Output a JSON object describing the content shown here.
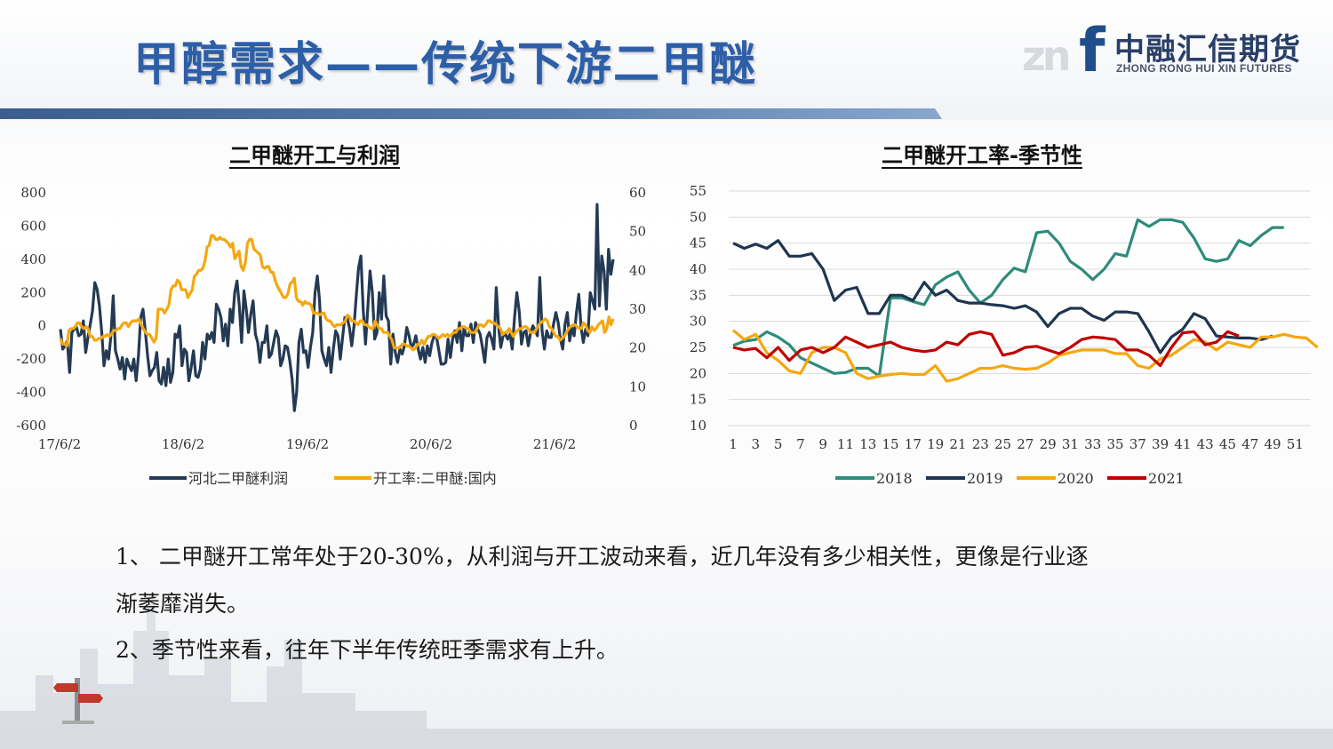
{
  "slide": {
    "title": "甲醇需求——传统下游二甲醚",
    "logo_cn": "中融汇信期货",
    "logo_en": "ZHONG RONG HUI XIN FUTURES",
    "logo_mark": "zn",
    "logo_f": "f"
  },
  "text": {
    "line1": "1、  二甲醚开工常年处于20-30%，从利润与开工波动来看，近几年没有多少相关性，更像是行业逐",
    "line2": "渐萎靡消失。",
    "line3": "2、季节性来看，往年下半年传统旺季需求有上升。"
  },
  "chart_data": [
    {
      "type": "line",
      "title": "二甲醚开工与利润",
      "x_tick_labels": [
        "17/6/2",
        "18/6/2",
        "19/6/2",
        "20/6/2",
        "21/6/2"
      ],
      "y_left": {
        "ticks": [
          "800",
          "600",
          "400",
          "200",
          "0",
          "-200",
          "-400",
          "-600"
        ],
        "range": [
          -600,
          800
        ]
      },
      "y_right": {
        "ticks": [
          "60",
          "50",
          "40",
          "30",
          "20",
          "10",
          "0"
        ],
        "range": [
          0,
          60
        ]
      },
      "legend_position": "bottom",
      "series": [
        {
          "name": "河北二甲醚利润",
          "axis": "left",
          "color": "#243a54",
          "values": [
            -20,
            -140,
            -120,
            -90,
            -280,
            -40,
            -20,
            -10,
            -60,
            -50,
            30,
            -160,
            -70,
            10,
            90,
            260,
            220,
            120,
            -40,
            -240,
            -150,
            -200,
            -60,
            180,
            -150,
            -200,
            -260,
            -190,
            -320,
            -200,
            -240,
            -270,
            -200,
            -330,
            -180,
            50,
            100,
            -30,
            -180,
            -300,
            -270,
            -250,
            -160,
            -330,
            -350,
            -250,
            -360,
            -200,
            -340,
            -280,
            -50,
            -70,
            0,
            -240,
            -140,
            -160,
            -330,
            -250,
            -150,
            -300,
            -310,
            -260,
            -100,
            -200,
            -50,
            -80,
            -40,
            -100,
            130,
            100,
            50,
            -90,
            10,
            -120,
            100,
            20,
            200,
            270,
            120,
            -100,
            210,
            100,
            -40,
            70,
            150,
            -50,
            -100,
            -220,
            -100,
            -100,
            0,
            -190,
            -170,
            -100,
            -30,
            -70,
            -240,
            -200,
            -120,
            -130,
            -210,
            -320,
            -510,
            -400,
            -100,
            -20,
            -160,
            -150,
            -250,
            -130,
            -40,
            200,
            300,
            150,
            -150,
            -200,
            -240,
            -130,
            -280,
            -140,
            -30,
            -60,
            -200,
            -70,
            50,
            50,
            -10,
            -120,
            0,
            180,
            350,
            420,
            100,
            -110,
            100,
            330,
            200,
            -80,
            -40,
            200,
            40,
            300,
            60,
            30,
            -230,
            -50,
            -160,
            -220,
            -140,
            -170,
            -120,
            -10,
            -60,
            -130,
            -110,
            -60,
            -140,
            -200,
            -130,
            -220,
            -120,
            -180,
            -100,
            -60,
            -70,
            -150,
            -230,
            -230,
            -220,
            -80,
            -190,
            -80,
            -30,
            -100,
            20,
            -150,
            -10,
            -60,
            -60,
            10,
            -100,
            20,
            -20,
            -50,
            -130,
            -220,
            -70,
            -40,
            -80,
            -140,
            230,
            0,
            -130,
            -60,
            -50,
            -80,
            -50,
            -140,
            50,
            200,
            90,
            -110,
            -40,
            -30,
            -120,
            -40,
            0,
            -30,
            -60,
            290,
            -30,
            -140,
            -30,
            -70,
            -70,
            10,
            80,
            20,
            -80,
            -140,
            10,
            80,
            -90,
            -10,
            -60,
            80,
            190,
            -10,
            -100,
            -20,
            -60,
            200,
            150,
            100,
            730,
            120,
            420,
            330,
            100,
            460,
            310,
            400
          ]
        },
        {
          "name": "开工率:二甲醚:国内",
          "axis": "right",
          "color": "#f5a70f",
          "values": [
            22.5,
            21,
            21,
            20.5,
            24.5,
            25,
            25,
            25.5,
            26.5,
            26.5,
            25.5,
            25,
            25.5,
            25,
            23,
            23,
            22,
            22,
            22.5,
            22.5,
            23,
            23,
            23.5,
            23,
            23.5,
            24.5,
            24.5,
            25,
            25,
            26,
            26.5,
            26.5,
            25.5,
            26.5,
            27,
            27,
            27,
            27.5,
            26,
            25,
            24,
            23.5,
            23.5,
            22.5,
            21.5,
            22.5,
            30,
            30,
            30,
            29,
            30,
            31,
            35,
            36,
            36,
            37.5,
            37,
            35,
            35,
            35,
            33,
            34,
            35,
            38.5,
            39,
            40,
            40,
            40.5,
            42.5,
            46,
            46.5,
            49,
            49,
            48,
            48,
            48.5,
            48,
            48,
            47.5,
            47,
            46,
            47,
            43,
            44,
            45,
            41,
            40,
            42,
            47,
            48,
            48,
            45.5,
            45,
            44.5,
            44,
            41,
            40.5,
            41,
            41,
            39.5,
            39.5,
            37.5,
            36,
            35,
            34,
            33,
            33,
            34,
            36.5,
            37,
            38,
            33,
            32,
            32,
            31,
            32,
            31.5,
            31.5,
            31,
            29,
            29,
            29,
            28.5,
            29,
            29,
            27.5,
            27,
            27,
            26,
            25.5,
            26,
            26,
            26,
            26.5,
            27,
            28.5,
            28,
            27,
            27,
            26.5,
            26,
            27,
            27,
            26,
            26,
            25.5,
            25,
            25,
            27,
            26,
            25,
            25,
            24,
            24,
            24,
            23,
            22,
            20,
            20,
            20,
            20.5,
            21,
            21,
            20.5,
            20.5,
            20,
            19.5,
            20,
            21,
            21,
            22,
            21,
            22,
            23,
            23,
            23.5,
            23.5,
            23,
            22.5,
            23,
            23.5,
            23,
            23.5,
            23,
            23.5,
            24,
            24,
            25,
            25,
            25.5,
            25.5,
            25,
            25,
            24,
            24,
            24,
            25,
            26,
            26,
            25.5,
            26,
            27,
            27,
            26.5,
            26.5,
            26,
            25.5,
            25,
            23.5,
            24,
            24,
            25,
            24,
            23,
            24,
            24.5,
            25,
            25,
            25.5,
            25.5,
            25,
            24,
            24,
            24,
            25,
            26,
            26.5,
            27,
            27.5,
            27,
            25.5,
            25,
            24,
            23,
            23,
            22,
            22.5,
            23,
            24,
            25,
            25.5,
            26,
            26,
            25.5,
            25,
            25,
            26.5,
            26,
            24.5,
            24,
            25.5,
            24.5,
            25,
            26,
            26.5,
            27,
            24,
            25,
            28,
            26,
            27.5
          ]
        }
      ]
    },
    {
      "type": "line",
      "title": "二甲醚开工率-季节性",
      "x_tick_labels": [
        "1",
        "3",
        "5",
        "7",
        "9",
        "11",
        "13",
        "15",
        "17",
        "19",
        "21",
        "23",
        "25",
        "27",
        "29",
        "31",
        "33",
        "35",
        "37",
        "39",
        "41",
        "43",
        "45",
        "47",
        "49",
        "51"
      ],
      "y": {
        "ticks": [
          "55",
          "50",
          "45",
          "40",
          "35",
          "30",
          "25",
          "20",
          "15",
          "10"
        ],
        "range": [
          10,
          55
        ]
      },
      "legend_position": "bottom",
      "series": [
        {
          "name": "2018",
          "color": "#2e8b7a",
          "values": [
            25.4,
            26.2,
            26.5,
            28,
            27,
            25.5,
            23,
            22,
            21,
            20,
            20.2,
            21,
            21,
            19.5,
            34.5,
            34.5,
            33.8,
            33.2,
            37,
            38.5,
            39.5,
            36,
            33.5,
            35,
            38,
            40.2,
            39.5,
            47,
            47.3,
            45,
            41.5,
            40,
            38,
            40,
            43,
            42.5,
            49.5,
            48.2,
            49.5,
            49.5,
            49,
            46,
            42,
            41.5,
            42,
            45.5,
            44.5,
            46.5,
            48,
            48
          ]
        },
        {
          "name": "2019",
          "color": "#1e3550",
          "values": [
            45,
            44,
            44.8,
            44,
            45.5,
            42.5,
            42.5,
            43,
            40,
            34,
            36,
            36.5,
            31.5,
            31.5,
            35,
            35,
            34,
            37.5,
            35,
            36,
            34,
            33.5,
            33.5,
            33.2,
            33,
            32.5,
            33,
            31.8,
            29,
            31.5,
            32.5,
            32.5,
            31,
            30.2,
            31.8,
            31.8,
            31.5,
            28,
            24,
            27,
            28.5,
            31.5,
            30.5,
            27.2,
            27,
            26.8,
            26.8,
            26.5,
            27.2
          ]
        },
        {
          "name": "2020",
          "color": "#f5a70f",
          "values": [
            28.3,
            26.5,
            27.5,
            24,
            22.5,
            20.5,
            20,
            24,
            25,
            25,
            24,
            20,
            19,
            19.5,
            19.8,
            20,
            19.8,
            19.8,
            21.5,
            18.5,
            19,
            20,
            21,
            21,
            21.5,
            21,
            20.8,
            21,
            22,
            23.5,
            24,
            24.5,
            24.5,
            24.5,
            23.8,
            23.8,
            21.5,
            21,
            22.8,
            23.5,
            25,
            26.5,
            26,
            24.5,
            26,
            25.5,
            25,
            27,
            27,
            27.5,
            27,
            26.8,
            25
          ]
        },
        {
          "name": "2021",
          "color": "#c00000",
          "values": [
            25,
            24.5,
            24.8,
            23,
            25,
            22.5,
            24.5,
            25,
            24,
            25,
            27,
            26,
            25,
            25.5,
            26,
            25,
            24.5,
            24.2,
            24.5,
            26,
            25.5,
            27.5,
            28,
            27.5,
            23.5,
            24,
            25,
            25.2,
            24.5,
            23.8,
            25,
            26.5,
            27,
            26.8,
            26.5,
            24.5,
            24.5,
            23.5,
            21.5,
            25,
            27.8,
            28,
            25.5,
            26,
            28,
            27.2
          ]
        }
      ]
    }
  ]
}
